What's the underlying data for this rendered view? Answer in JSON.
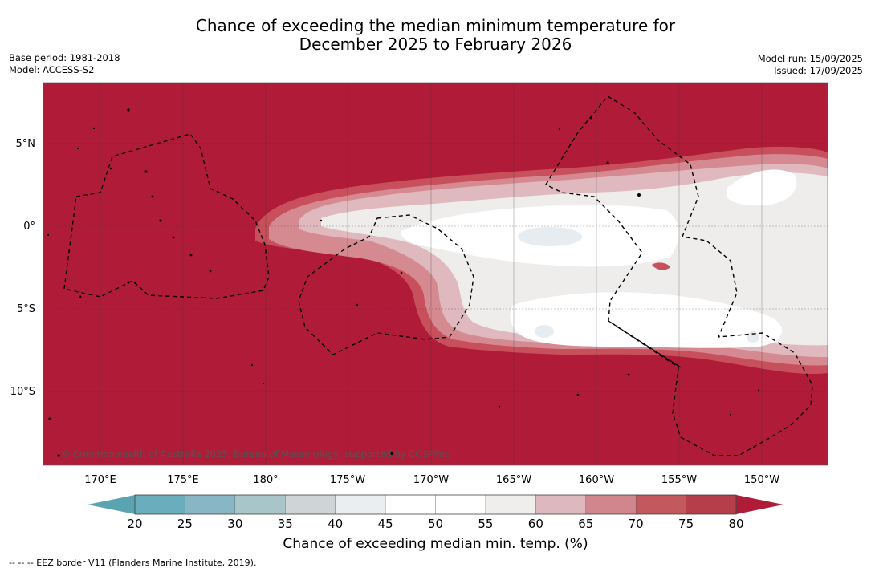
{
  "title_line1": "Chance of exceeding the median minimum temperature for",
  "title_line2": "December 2025 to February 2026",
  "meta": {
    "base_period": "Base period: 1981-2018",
    "model": "Model: ACCESS-S2",
    "model_run": "Model run: 15/09/2025",
    "issued": "Issued: 17/09/2025"
  },
  "lat_labels": [
    "5°N",
    "0°",
    "5°S",
    "10°S"
  ],
  "lon_labels": [
    "170°E",
    "175°E",
    "180°",
    "175°W",
    "170°W",
    "165°W",
    "160°W",
    "155°W",
    "150°W"
  ],
  "copyright": "© Commonwealth of Australia 2025, Bureau of Meteorology, supported by COSPPac",
  "colorbar": {
    "ticks": [
      "20",
      "25",
      "30",
      "35",
      "40",
      "45",
      "50",
      "55",
      "60",
      "65",
      "70",
      "75",
      "80"
    ],
    "colors": [
      "#6aaebd",
      "#88b6c4",
      "#a8c6ca",
      "#cfd4d6",
      "#eaeef0",
      "#ffffff",
      "#ffffff",
      "#efeeed",
      "#ddb8bc",
      "#d1868e",
      "#c3595f",
      "#b53e4a"
    ],
    "under_color": "#5aa3b1",
    "over_color": "#b01c38",
    "label": "Chance of exceeding median min. temp. (%)"
  },
  "field_colors": {
    "c60": "#b01c38",
    "c65": "#c8505c",
    "c70": "#d58a91",
    "c75": "#dfb9bd",
    "c80": "#efedec",
    "c85": "#ffffff",
    "low": "#e6ecef"
  },
  "footnote": "--  --  -- EEZ border V11 (Flanders Marine Institute, 2019)."
}
